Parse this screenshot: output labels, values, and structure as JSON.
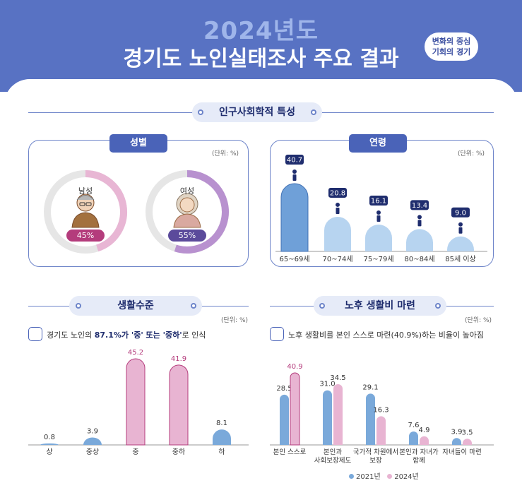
{
  "header": {
    "year": "2024년도",
    "title": "경기도 노인실태조사 주요 결과",
    "badge_line1": "변화의 중심",
    "badge_line2": "기회의 경기"
  },
  "sections": {
    "demographics": "인구사회학적 특성",
    "living": "생활수준",
    "retirement": "노후 생활비 마련"
  },
  "gender": {
    "tab": "성별",
    "unit": "(단위: %)",
    "male_label": "남성",
    "female_label": "여성",
    "male_pct_label": "45%",
    "female_pct_label": "55%",
    "male_pct": 45,
    "female_pct": 55,
    "male_color": "#e8b6d4",
    "female_color": "#b891cf",
    "track_color": "#e6e6e6"
  },
  "age": {
    "tab": "연령",
    "unit": "(단위: %)"
  },
  "living": {
    "unit": "(단위: %)",
    "note_pre": "경기도 노인의 ",
    "note_bold": "87.1%가 '중' 또는 '중하'",
    "note_post": "로 인식"
  },
  "retirement": {
    "unit": "(단위: %)",
    "note": "노후 생활비를 본인 스스로 마련(40.9%)하는 비율이 높아짐",
    "legend_2021": "2021년",
    "legend_2024": "2024년"
  },
  "colors": {
    "blue": "#7aa9da",
    "pink": "#e8b4d2",
    "navy": "#1f2d6e",
    "magenta": "#b43c7c",
    "lightblue": "#b7d4f0"
  },
  "chart_data": [
    {
      "type": "bar",
      "title": "연령",
      "categories": [
        "65~69세",
        "70~74세",
        "75~79세",
        "80~84세",
        "85세 이상"
      ],
      "values": [
        40.7,
        20.8,
        16.1,
        13.4,
        9.0
      ],
      "value_labels": [
        "40.7",
        "20.8",
        "16.1",
        "13.4",
        "9.0"
      ]
    },
    {
      "type": "bar",
      "title": "생활수준",
      "categories": [
        "상",
        "중상",
        "중",
        "중하",
        "하"
      ],
      "values": [
        0.8,
        3.9,
        45.2,
        41.9,
        8.1
      ],
      "value_labels": [
        "0.8",
        "3.9",
        "45.2",
        "41.9",
        "8.1"
      ]
    },
    {
      "type": "bar",
      "title": "노후 생활비 마련",
      "categories": [
        "본인 스스로",
        "본인과\n사회보장제도",
        "국가적 차원에서\n보장",
        "본인과 자녀가\n함께",
        "자녀들이 마련"
      ],
      "series": [
        {
          "name": "2021년",
          "values": [
            28.5,
            31.0,
            29.1,
            7.6,
            3.9
          ],
          "value_labels": [
            "28.5",
            "31.0",
            "29.1",
            "7.6",
            "3.9"
          ]
        },
        {
          "name": "2024년",
          "values": [
            40.9,
            34.5,
            16.3,
            4.9,
            3.5
          ],
          "value_labels": [
            "40.9",
            "34.5",
            "16.3",
            "4.9",
            "3.5"
          ]
        }
      ]
    }
  ]
}
